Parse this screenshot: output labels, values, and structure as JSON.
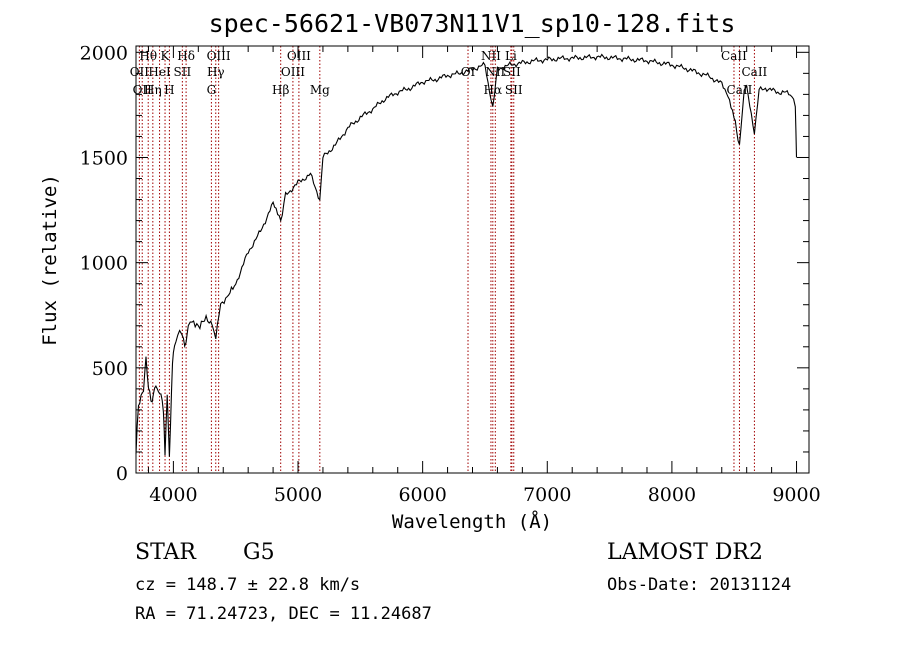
{
  "chart_data": {
    "type": "line",
    "title": "spec-56621-VB073N11V1_sp10-128.fits",
    "xlabel": "Wavelength (Å)",
    "ylabel": "Flux (relative)",
    "xlim": [
      3700,
      9100
    ],
    "ylim": [
      0,
      2030
    ],
    "x_ticks": [
      4000,
      5000,
      6000,
      7000,
      8000,
      9000
    ],
    "x_tick_labels": [
      "4000",
      "5000",
      "6000",
      "7000",
      "8000",
      "9000"
    ],
    "y_ticks": [
      0,
      500,
      1000,
      1500,
      2000
    ],
    "y_tick_labels": [
      "0",
      "500",
      "1000",
      "1500",
      "2000"
    ],
    "grid": false,
    "series": [
      {
        "color": "#000000",
        "x": [
          3700,
          3720,
          3740,
          3760,
          3780,
          3800,
          3820,
          3840,
          3860,
          3880,
          3900,
          3920,
          3933,
          3950,
          3968,
          3985,
          4000,
          4020,
          4050,
          4080,
          4102,
          4120,
          4150,
          4200,
          4250,
          4300,
          4340,
          4380,
          4420,
          4500,
          4600,
          4700,
          4800,
          4861,
          4900,
          5000,
          5100,
          5175,
          5200,
          5300,
          5400,
          5500,
          5600,
          5700,
          5800,
          5900,
          6000,
          6100,
          6200,
          6300,
          6400,
          6500,
          6563,
          6600,
          6700,
          6800,
          6900,
          7000,
          7100,
          7200,
          7300,
          7400,
          7500,
          7600,
          7700,
          7800,
          7900,
          8000,
          8100,
          8200,
          8300,
          8400,
          8450,
          8498,
          8542,
          8580,
          8600,
          8662,
          8700,
          8750,
          8800,
          8850,
          8900,
          8950,
          8990,
          9000
        ],
        "y": [
          80,
          320,
          370,
          410,
          530,
          400,
          350,
          380,
          420,
          360,
          390,
          300,
          100,
          350,
          70,
          400,
          600,
          620,
          650,
          640,
          600,
          680,
          700,
          710,
          720,
          720,
          650,
          800,
          830,
          900,
          1050,
          1150,
          1280,
          1200,
          1320,
          1380,
          1420,
          1300,
          1500,
          1560,
          1640,
          1690,
          1730,
          1780,
          1810,
          1830,
          1860,
          1870,
          1890,
          1900,
          1920,
          1940,
          1730,
          1920,
          1940,
          1950,
          1960,
          1965,
          1970,
          1972,
          1975,
          1978,
          1975,
          1970,
          1965,
          1960,
          1950,
          1940,
          1925,
          1905,
          1885,
          1850,
          1800,
          1700,
          1550,
          1820,
          1830,
          1620,
          1820,
          1830,
          1820,
          1810,
          1810,
          1800,
          1750,
          1500
        ]
      }
    ],
    "spectral_lines": [
      {
        "wavelength": 3727,
        "label": "OII",
        "row": 2
      },
      {
        "wavelength": 3750,
        "label": "OII",
        "row": 3
      },
      {
        "wavelength": 3798,
        "label": "Hθ",
        "row": 1
      },
      {
        "wavelength": 3835,
        "label": "Hη",
        "row": 3
      },
      {
        "wavelength": 3889,
        "label": "HeI",
        "row": 2
      },
      {
        "wavelength": 3933,
        "label": "K",
        "row": 1
      },
      {
        "wavelength": 3968,
        "label": "H",
        "row": 3
      },
      {
        "wavelength": 4072,
        "label": "SII",
        "row": 2
      },
      {
        "wavelength": 4102,
        "label": "Hδ",
        "row": 1
      },
      {
        "wavelength": 4305,
        "label": "G",
        "row": 3
      },
      {
        "wavelength": 4340,
        "label": "Hγ",
        "row": 2
      },
      {
        "wavelength": 4363,
        "label": "OIII",
        "row": 1
      },
      {
        "wavelength": 4861,
        "label": "Hβ",
        "row": 3
      },
      {
        "wavelength": 4959,
        "label": "OIII",
        "row": 2
      },
      {
        "wavelength": 5007,
        "label": "OIII",
        "row": 1
      },
      {
        "wavelength": 5175,
        "label": "Mg",
        "row": 3
      },
      {
        "wavelength": 6364,
        "label": "OI",
        "row": 2
      },
      {
        "wavelength": 6548,
        "label": "NII",
        "row": 1
      },
      {
        "wavelength": 6563,
        "label": "Hα",
        "row": 3
      },
      {
        "wavelength": 6583,
        "label": "NII",
        "row": 2
      },
      {
        "wavelength": 6708,
        "label": "Li",
        "row": 1
      },
      {
        "wavelength": 6716,
        "label": "SII",
        "row": 2
      },
      {
        "wavelength": 6731,
        "label": "SII",
        "row": 3
      },
      {
        "wavelength": 8498,
        "label": "CaII",
        "row": 1
      },
      {
        "wavelength": 8542,
        "label": "CaII",
        "row": 3
      },
      {
        "wavelength": 8662,
        "label": "CaII",
        "row": 2
      }
    ]
  },
  "info": {
    "object_class": "STAR",
    "subclass": "G5",
    "survey": "LAMOST DR2",
    "redshift_line": "cz = 148.7 ± 22.8 km/s",
    "obs_date_line": "Obs-Date: 20131124",
    "coords_line": "RA =  71.24723, DEC =  11.24687"
  },
  "colors": {
    "spectrum": "#000000",
    "line_markers": "#a00000",
    "axes": "#000000"
  }
}
